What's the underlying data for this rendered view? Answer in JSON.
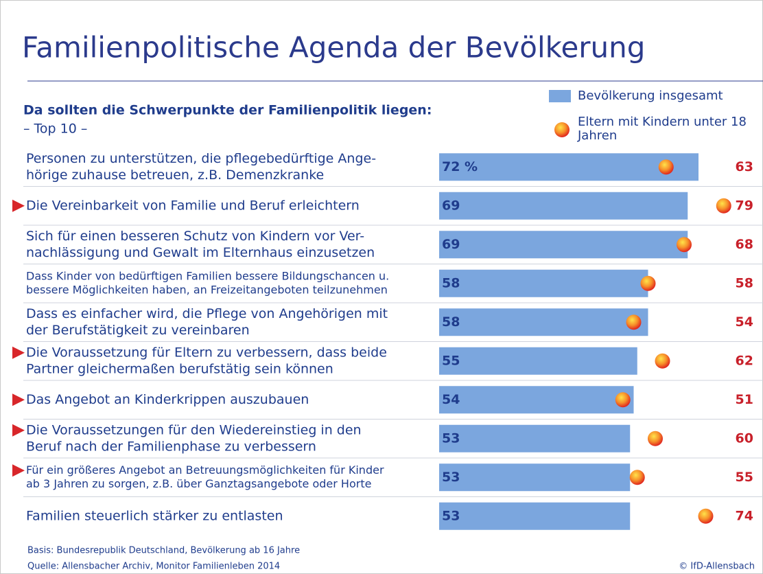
{
  "chart_data": {
    "type": "bar_dot",
    "title": "Familienpolitische Agenda der Bevölkerung",
    "subtitle": "Da sollten die Schwerpunkte der Familienpolitik liegen:",
    "subtitle2": "– Top 10 –",
    "categories": [
      [
        "Personen zu unterstützen, die pflegebedürftige Ange-",
        "hörige zuhause betreuen, z.B. Demenzkranke"
      ],
      [
        "Die Vereinbarkeit von Familie und Beruf erleichtern"
      ],
      [
        "Sich für einen besseren Schutz von Kindern vor Ver-",
        "nachlässigung und Gewalt im Elternhaus einzusetzen"
      ],
      [
        "Dass Kinder von bedürftigen Familien bessere Bildungschancen u.",
        "bessere Möglichkeiten haben, an Freizeitangeboten teilzunehmen"
      ],
      [
        "Dass es einfacher wird, die Pflege von Angehörigen mit",
        "der Berufstätigkeit zu vereinbaren"
      ],
      [
        "Die Voraussetzung für Eltern zu verbessern, dass beide",
        "Partner gleichermaßen berufstätig sein können"
      ],
      [
        "Das Angebot an Kinderkrippen auszubauen"
      ],
      [
        "Die Voraussetzungen für den Wiedereinstieg in den",
        "Beruf nach der Familienphase zu verbessern"
      ],
      [
        "Für ein größeres Angebot an Betreuungsmöglichkeiten für Kinder",
        "ab 3 Jahren zu sorgen, z.B. über Ganztagsangebote oder Horte"
      ],
      [
        "Familien steuerlich stärker zu entlasten"
      ]
    ],
    "marked": [
      false,
      true,
      false,
      false,
      false,
      true,
      true,
      true,
      true,
      false
    ],
    "series": [
      {
        "name": "Bevölkerung insgesamt",
        "color": "#7ba6de",
        "values": [
          72,
          69,
          69,
          58,
          58,
          55,
          54,
          53,
          53,
          53
        ],
        "value_labels": [
          "72 %",
          "69",
          "69",
          "58",
          "58",
          "55",
          "54",
          "53",
          "53",
          "53"
        ]
      },
      {
        "name": "Eltern mit Kindern unter 18 Jahren",
        "color": "#e8312a",
        "values": [
          63,
          79,
          68,
          58,
          54,
          62,
          51,
          60,
          55,
          74
        ]
      }
    ],
    "xlim": [
      0,
      100
    ],
    "notes": [
      "Basis: Bundesrepublik Deutschland, Bevölkerung ab 16 Jahre",
      "Quelle: Allensbacher Archiv, Monitor Familienleben 2014"
    ],
    "credit": "© IfD-Allensbach"
  }
}
